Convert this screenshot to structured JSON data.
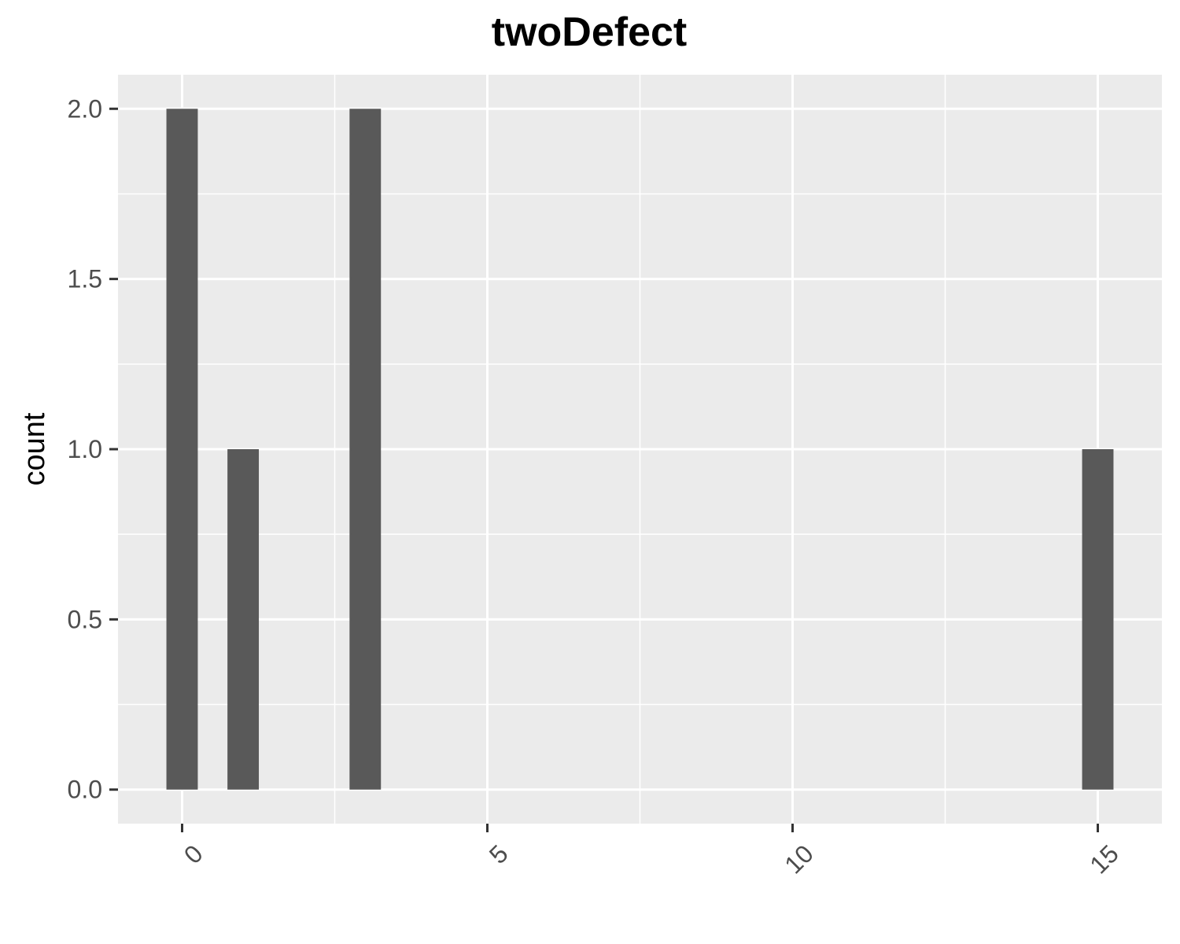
{
  "chart_data": {
    "type": "bar",
    "title": "twoDefect",
    "xlabel": "",
    "ylabel": "count",
    "x": [
      0,
      1,
      3,
      15
    ],
    "values": [
      2,
      1,
      2,
      1
    ],
    "xlim": [
      -1.05,
      16.05
    ],
    "ylim": [
      -0.1,
      2.1
    ],
    "x_ticks": [
      0,
      5,
      10,
      15
    ],
    "x_tick_labels": [
      "0",
      "5",
      "10",
      "15"
    ],
    "y_ticks": [
      0,
      0.5,
      1,
      1.5,
      2
    ],
    "y_tick_labels": [
      "0.0",
      "0.5",
      "1.0",
      "1.5",
      "2.0"
    ],
    "bar_color": "#595959",
    "panel_color": "#ebebeb",
    "grid": true,
    "legend": "none"
  }
}
